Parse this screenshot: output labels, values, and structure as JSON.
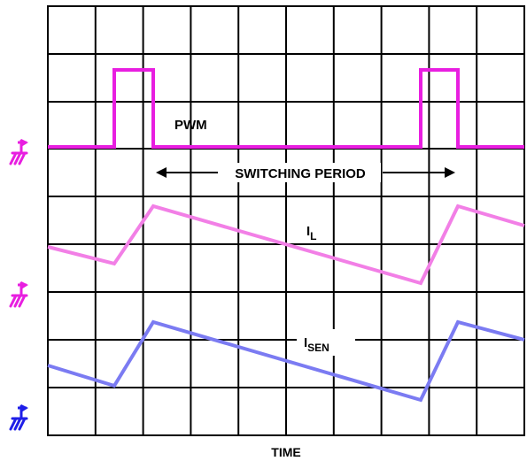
{
  "labels": {
    "pwm": "PWM",
    "switching_period": "SWITCHING PERIOD",
    "il_main": "I",
    "il_sub": "L",
    "isen_main": "I",
    "isen_sub": "SEN",
    "time": "TIME"
  },
  "colors": {
    "pwm": "#e81ee0",
    "il": "#f27fe6",
    "isen": "#7b7bf2",
    "ground_markers": [
      "#e81ee0",
      "#e81ee0",
      "#1e1ee8"
    ],
    "grid": "#000000"
  },
  "icons": {
    "ground_marker": "ground-reference-arrow-icon"
  }
}
